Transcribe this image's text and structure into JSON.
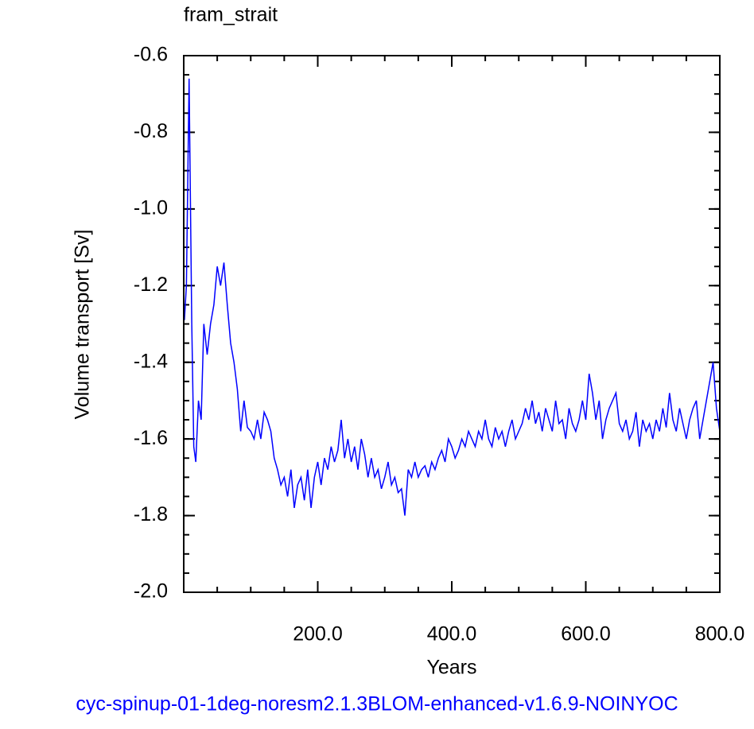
{
  "chart_data": {
    "type": "line",
    "title": "fram_strait",
    "x_label": "Years",
    "y_label": "Volume transport [Sv]",
    "footer": "cyc-spinup-01-1deg-noresm2.1.3BLOM-enhanced-v1.6.9-NOINYOC",
    "xlim": [
      0,
      800
    ],
    "ylim": [
      -2.0,
      -0.6
    ],
    "xticks": [
      {
        "value": 200,
        "label": "200.0"
      },
      {
        "value": 400,
        "label": "400.0"
      },
      {
        "value": 600,
        "label": "600.0"
      },
      {
        "value": 800,
        "label": "800.0"
      }
    ],
    "yticks": [
      {
        "value": -2.0,
        "label": "-2.0"
      },
      -1.8,
      -1.6,
      -1.4,
      -1.2,
      {
        "value": -1.0,
        "label": "-1.0"
      },
      -0.8,
      -0.6
    ],
    "x": [
      1,
      4,
      8,
      12,
      15,
      18,
      22,
      26,
      30,
      35,
      40,
      45,
      50,
      55,
      60,
      65,
      70,
      75,
      80,
      85,
      90,
      95,
      100,
      105,
      110,
      115,
      120,
      125,
      130,
      135,
      140,
      145,
      150,
      155,
      160,
      165,
      170,
      175,
      180,
      185,
      190,
      195,
      200,
      205,
      210,
      215,
      220,
      225,
      230,
      235,
      240,
      245,
      250,
      255,
      260,
      265,
      270,
      275,
      280,
      285,
      290,
      295,
      300,
      305,
      310,
      315,
      320,
      325,
      330,
      335,
      340,
      345,
      350,
      355,
      360,
      365,
      370,
      375,
      380,
      385,
      390,
      395,
      400,
      405,
      410,
      415,
      420,
      425,
      430,
      435,
      440,
      445,
      450,
      455,
      460,
      465,
      470,
      475,
      480,
      485,
      490,
      495,
      500,
      505,
      510,
      515,
      520,
      525,
      530,
      535,
      540,
      545,
      550,
      555,
      560,
      565,
      570,
      575,
      580,
      585,
      590,
      595,
      600,
      605,
      610,
      615,
      620,
      625,
      630,
      635,
      640,
      645,
      650,
      655,
      660,
      665,
      670,
      675,
      680,
      685,
      690,
      695,
      700,
      705,
      710,
      715,
      720,
      725,
      730,
      735,
      740,
      745,
      750,
      755,
      760,
      765,
      770,
      775,
      780,
      785,
      790,
      795,
      800
    ],
    "series": [
      {
        "name": "fram_strait",
        "color": "#0000ff",
        "values": [
          -1.29,
          -1.2,
          -0.66,
          -1.3,
          -1.62,
          -1.66,
          -1.5,
          -1.55,
          -1.3,
          -1.38,
          -1.3,
          -1.25,
          -1.15,
          -1.2,
          -1.14,
          -1.25,
          -1.35,
          -1.4,
          -1.47,
          -1.58,
          -1.5,
          -1.57,
          -1.58,
          -1.6,
          -1.55,
          -1.6,
          -1.53,
          -1.55,
          -1.58,
          -1.65,
          -1.68,
          -1.72,
          -1.7,
          -1.75,
          -1.68,
          -1.78,
          -1.72,
          -1.7,
          -1.76,
          -1.68,
          -1.78,
          -1.7,
          -1.66,
          -1.72,
          -1.65,
          -1.68,
          -1.62,
          -1.66,
          -1.63,
          -1.55,
          -1.65,
          -1.6,
          -1.66,
          -1.62,
          -1.68,
          -1.6,
          -1.64,
          -1.7,
          -1.65,
          -1.7,
          -1.68,
          -1.73,
          -1.7,
          -1.66,
          -1.72,
          -1.7,
          -1.74,
          -1.73,
          -1.8,
          -1.68,
          -1.7,
          -1.66,
          -1.7,
          -1.68,
          -1.67,
          -1.7,
          -1.66,
          -1.68,
          -1.65,
          -1.63,
          -1.66,
          -1.6,
          -1.62,
          -1.65,
          -1.63,
          -1.6,
          -1.62,
          -1.58,
          -1.6,
          -1.62,
          -1.58,
          -1.6,
          -1.55,
          -1.6,
          -1.62,
          -1.57,
          -1.6,
          -1.58,
          -1.62,
          -1.58,
          -1.55,
          -1.6,
          -1.58,
          -1.56,
          -1.52,
          -1.55,
          -1.5,
          -1.56,
          -1.53,
          -1.58,
          -1.52,
          -1.55,
          -1.58,
          -1.5,
          -1.56,
          -1.55,
          -1.6,
          -1.52,
          -1.56,
          -1.58,
          -1.55,
          -1.5,
          -1.55,
          -1.43,
          -1.48,
          -1.55,
          -1.5,
          -1.6,
          -1.55,
          -1.52,
          -1.5,
          -1.48,
          -1.56,
          -1.58,
          -1.55,
          -1.6,
          -1.58,
          -1.53,
          -1.62,
          -1.55,
          -1.58,
          -1.56,
          -1.6,
          -1.55,
          -1.58,
          -1.52,
          -1.57,
          -1.48,
          -1.55,
          -1.58,
          -1.52,
          -1.56,
          -1.6,
          -1.55,
          -1.52,
          -1.5,
          -1.6,
          -1.55,
          -1.5,
          -1.45,
          -1.4,
          -1.52,
          -1.58
        ]
      }
    ]
  }
}
